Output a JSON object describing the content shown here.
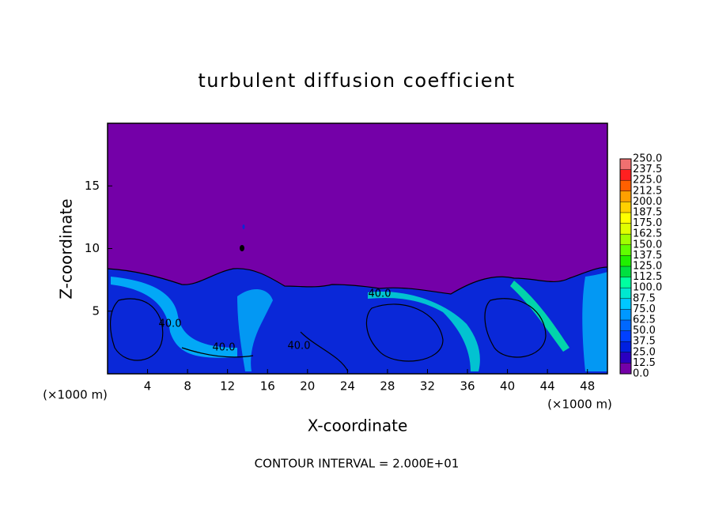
{
  "chart_data": {
    "type": "contour",
    "title": "turbulent diffusion coefficient",
    "xlabel": "X-coordinate",
    "ylabel": "Z-coordinate",
    "x_unit_left": "(×1000 m)",
    "x_unit_right": "(×1000 m)",
    "xlim": [
      0,
      50
    ],
    "xticks": [
      4,
      8,
      12,
      16,
      20,
      24,
      28,
      32,
      36,
      40,
      44,
      48
    ],
    "ylim": [
      0,
      20
    ],
    "yticks": [
      5,
      10,
      15
    ],
    "levels": [
      {
        "value": 0,
        "label": "0.0"
      },
      {
        "value": 12.5,
        "label": "12.5"
      },
      {
        "value": 25,
        "label": "25.0"
      },
      {
        "value": 37.5,
        "label": "37.5"
      },
      {
        "value": 50,
        "label": "50.0"
      },
      {
        "value": 62.5,
        "label": "62.5"
      },
      {
        "value": 75,
        "label": "75.0"
      },
      {
        "value": 87.5,
        "label": "87.5"
      },
      {
        "value": 100,
        "label": "100.0"
      },
      {
        "value": 112.5,
        "label": "112.5"
      },
      {
        "value": 125,
        "label": "125.0"
      },
      {
        "value": 137.5,
        "label": "137.5"
      },
      {
        "value": 150,
        "label": "150.0"
      },
      {
        "value": 162.5,
        "label": "162.5"
      },
      {
        "value": 175,
        "label": "175.0"
      },
      {
        "value": 187.5,
        "label": "187.5"
      },
      {
        "value": 200,
        "label": "200.0"
      },
      {
        "value": 212.5,
        "label": "212.5"
      },
      {
        "value": 225,
        "label": "225.0"
      },
      {
        "value": 237.5,
        "label": "237.5"
      },
      {
        "value": 250,
        "label": "250.0"
      }
    ],
    "colors": [
      "#7400a8",
      "#2a00c0",
      "#0020e0",
      "#0040ff",
      "#0068ff",
      "#0098ff",
      "#00c8ff",
      "#00e8d0",
      "#00ffa0",
      "#00e040",
      "#20f000",
      "#60ff00",
      "#a0ff00",
      "#e0ff00",
      "#ffff00",
      "#ffd000",
      "#ffa000",
      "#ff6000",
      "#ff2020",
      "#f07070"
    ],
    "contour_labels": [
      "40.0",
      "40.0",
      "40.0",
      "40.0"
    ],
    "footnote": "CONTOUR INTERVAL = 2.000E+01"
  }
}
